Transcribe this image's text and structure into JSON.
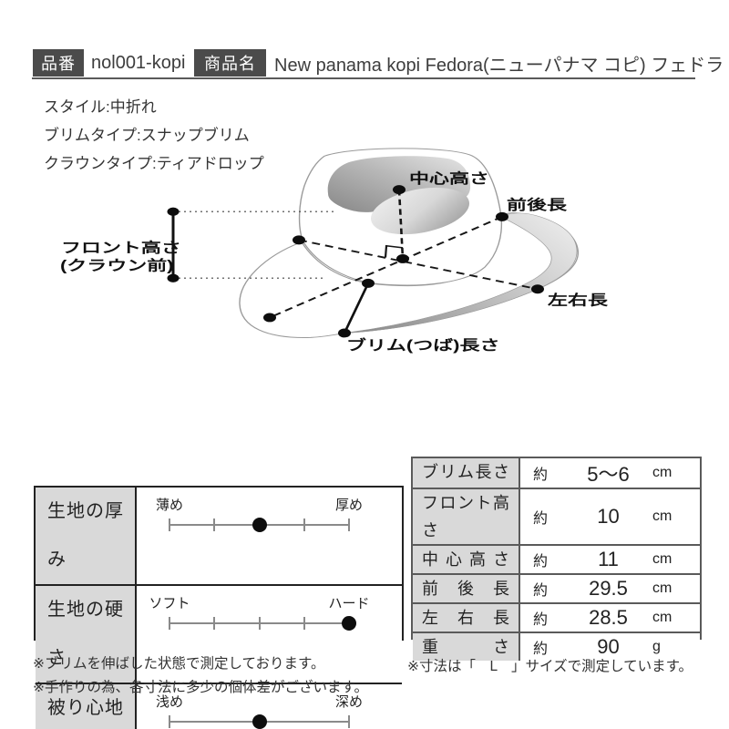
{
  "header": {
    "part_number_label": "品番",
    "part_number": "nol001-kopi",
    "product_name_label": "商品名",
    "product_name": "New panama kopi Fedora(ニューパナマ コピ) フェドラ"
  },
  "specs": {
    "style": "スタイル:中折れ",
    "brim_type": "ブリムタイプ:スナップブリム",
    "crown_type": "クラウンタイプ:ティアドロップ"
  },
  "diagram": {
    "labels": {
      "center_height": "中心高さ",
      "front_back_length": "前後長",
      "left_right_length": "左右長",
      "brim_length": "ブリム(つば)長さ",
      "front_height_line1": "フロント高さ",
      "front_height_line2": "(クラウン前)"
    }
  },
  "feature_table": {
    "rows": [
      {
        "label": "生地の厚み",
        "left": "薄め",
        "right": "厚め",
        "ticks": [
          0,
          0.25,
          0.5,
          0.75,
          1
        ],
        "dot": 0.5
      },
      {
        "label": "生地の硬さ",
        "left": "ソフト",
        "right": "ハード",
        "ticks": [
          0,
          0.25,
          0.5,
          0.75,
          1
        ],
        "dot": 1
      },
      {
        "label": "被り心地",
        "left": "浅め",
        "right": "深め",
        "ticks": [
          0,
          1
        ],
        "dot": 0.5
      }
    ]
  },
  "size_table": {
    "rows": [
      {
        "label": "ブリム長さ",
        "approx": "約",
        "value": "5〜6",
        "unit": "cm"
      },
      {
        "label": "フロント高さ",
        "approx": "約",
        "value": "10",
        "unit": "cm"
      },
      {
        "label": "中心高さ",
        "approx": "約",
        "value": "11",
        "unit": "cm"
      },
      {
        "label": "前後長",
        "approx": "約",
        "value": "29.5",
        "unit": "cm"
      },
      {
        "label": "左右長",
        "approx": "約",
        "value": "28.5",
        "unit": "cm"
      },
      {
        "label": "重さ",
        "approx": "約",
        "value": "90",
        "unit": "g"
      }
    ]
  },
  "notes": {
    "left1": "※ブリムを伸ばした状態で測定しております。",
    "left2": "※手作りの為、各寸法に多少の個体差がございます。",
    "right": "※寸法は「　L　」サイズで測定しています。"
  },
  "colors": {
    "badge_bg": "#4b4b4b",
    "label_cell_bg": "#d9d9d9",
    "table_border_dark": "#222222",
    "table_border_gray": "#5a5a5a",
    "text": "#333333"
  }
}
